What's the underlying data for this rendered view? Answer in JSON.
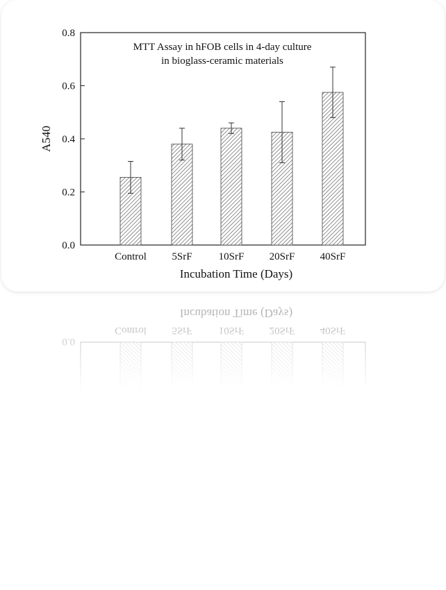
{
  "chart_data": {
    "type": "bar",
    "title": "MTT Assay in hFOB cells in 4-day culture",
    "subtitle": "in bioglass-ceramic materials",
    "x_label": "Incubation Time (Days)",
    "y_label": "A540",
    "categories": [
      "Control",
      "5SrF",
      "10SrF",
      "20SrF",
      "40SrF"
    ],
    "values": [
      0.255,
      0.38,
      0.44,
      0.425,
      0.575
    ],
    "errors": [
      0.06,
      0.06,
      0.02,
      0.115,
      0.095
    ],
    "color": "#555555",
    "ylim": [
      0,
      0.8
    ],
    "yticks": [
      {
        "value": 0,
        "label": "0.0"
      },
      0.2,
      0.4,
      0.6,
      0.8
    ]
  }
}
